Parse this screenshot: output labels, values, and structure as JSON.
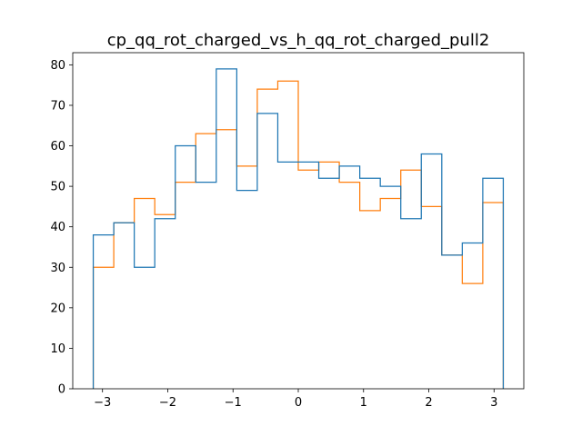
{
  "chart_data": {
    "type": "step-histogram",
    "title": "cp_qq_rot_charged_vs_h_qq_rot_charged_pull2",
    "xlabel": "",
    "ylabel": "",
    "xlim": [
      -3.456,
      3.456
    ],
    "ylim": [
      0,
      83
    ],
    "x_ticks": [
      -3,
      -2,
      -1,
      0,
      1,
      2,
      3
    ],
    "x_tick_labels": [
      "−3",
      "−2",
      "−1",
      "0",
      "1",
      "2",
      "3"
    ],
    "y_ticks": [
      0,
      10,
      20,
      30,
      40,
      50,
      60,
      70,
      80
    ],
    "y_tick_labels": [
      "0",
      "10",
      "20",
      "30",
      "40",
      "50",
      "60",
      "70",
      "80"
    ],
    "bin_range": [
      -3.14159,
      3.14159
    ],
    "bins": 20,
    "grid": false,
    "series": [
      {
        "color": "#1f77b4",
        "values": [
          38,
          41,
          30,
          42,
          60,
          51,
          79,
          49,
          68,
          56,
          56,
          52,
          55,
          52,
          50,
          42,
          58,
          33,
          36,
          52
        ]
      },
      {
        "color": "#ff7f0e",
        "values": [
          30,
          41,
          47,
          43,
          51,
          63,
          64,
          55,
          74,
          76,
          54,
          56,
          51,
          44,
          47,
          54,
          45,
          33,
          26,
          46
        ]
      }
    ]
  }
}
